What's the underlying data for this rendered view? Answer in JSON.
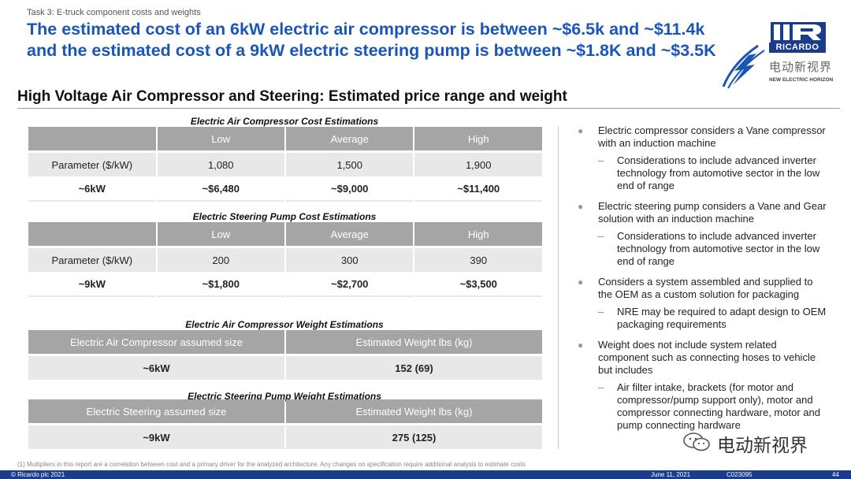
{
  "header": {
    "task_label": "Task 3: E-truck component costs and weights",
    "headline_line1": "The estimated cost of an 6kW electric air compressor is between ~$6.5k and ~$11.4k",
    "headline_line2": "and the estimated cost of a 9kW electric steering pump is between ~$1.8K and ~$3.5K"
  },
  "logo": {
    "brand": "RICARDO",
    "cn_name": "电动新视界",
    "en_name": "NEW ELECTRIC HORIZON"
  },
  "subtitle": "High Voltage Air Compressor and Steering: Estimated price range and weight",
  "table1": {
    "caption": "Electric Air Compressor Cost Estimations",
    "headers": [
      "",
      "Low",
      "Average",
      "High"
    ],
    "row1": [
      "Parameter ($/kW)",
      "1,080",
      "1,500",
      "1,900"
    ],
    "row2": [
      "~6kW",
      "~$6,480",
      "~$9,000",
      "~$11,400"
    ]
  },
  "table2": {
    "caption": "Electric Steering Pump Cost Estimations",
    "headers": [
      "",
      "Low",
      "Average",
      "High"
    ],
    "row1": [
      "Parameter ($/kW)",
      "200",
      "300",
      "390"
    ],
    "row2": [
      "~9kW",
      "~$1,800",
      "~$2,700",
      "~$3,500"
    ]
  },
  "table3": {
    "caption": "Electric Air Compressor Weight Estimations",
    "headers": [
      "Electric Air Compressor assumed size",
      "Estimated Weight lbs (kg)"
    ],
    "row1": [
      "~6kW",
      "152 (69)"
    ]
  },
  "table4": {
    "caption": "Electric Steering Pump Weight Estimations",
    "headers": [
      "Electric Steering assumed size",
      "Estimated Weight lbs (kg)"
    ],
    "row1": [
      "~9kW",
      "275 (125)"
    ]
  },
  "bullets": {
    "b1": "Electric compressor considers a Vane compressor with an induction machine",
    "b1_sub": "Considerations to include advanced inverter technology from automotive sector in the low end of range",
    "b2": "Electric steering pump considers a Vane and Gear solution with an induction machine",
    "b2_sub": "Considerations to include advanced inverter technology from automotive sector in the low end of range",
    "b3": "Considers a system assembled and supplied to the OEM as a custom solution for packaging",
    "b3_sub": "NRE may be required to adapt design to OEM packaging requirements",
    "b4": "Weight does not include system related component such as connecting hoses to vehicle but includes",
    "b4_sub": "Air filter intake, brackets (for motor and compressor/pump support only), motor and compressor connecting hardware, motor and pump connecting hardware"
  },
  "footnote": "(1) Multipliers in this report are a correlation between cost and a primary driver for the analyzed architecture. Any changes on specification require additional analysis to estimate costs",
  "footer": {
    "copyright": "© Ricardo plc 2021",
    "date": "June 11,  2021",
    "code": "C023095",
    "page": "44"
  },
  "watermark": {
    "text": "电动新视界"
  }
}
